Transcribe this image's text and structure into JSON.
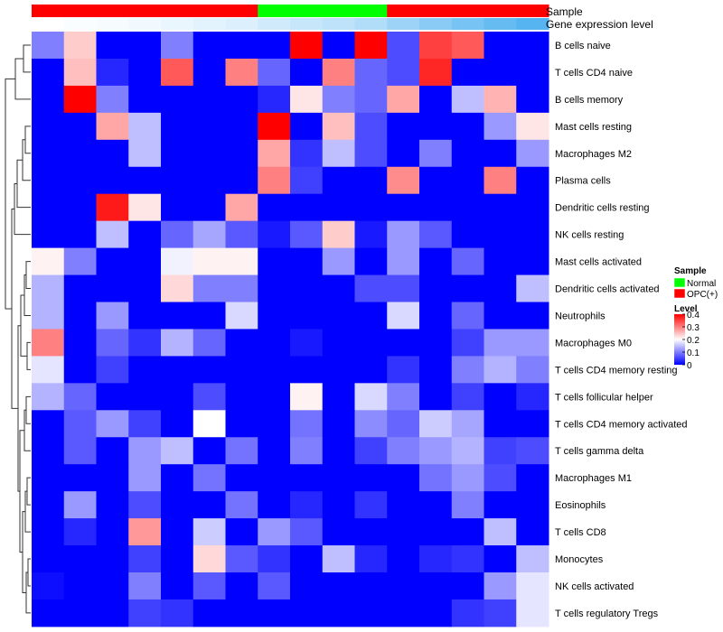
{
  "chart_data": {
    "type": "heatmap",
    "annotation_tracks": [
      "Sample",
      "Gene expression level"
    ],
    "rows": [
      "B cells naive",
      "T cells CD4 naive",
      "B cells memory",
      "Mast cells resting",
      "Macrophages M2",
      "Plasma cells",
      "Dendritic cells resting",
      "NK cells resting",
      "Mast cells activated",
      "Dendritic cells activated",
      "Neutrophils",
      "Macrophages M0",
      "T cells CD4 memory resting",
      "T cells follicular helper",
      "T cells CD4 memory activated",
      "T cells gamma delta",
      "Macrophages M1",
      "Eosinophils",
      "T cells CD8",
      "Monocytes",
      "NK cells activated",
      "T cells regulatory  Tregs"
    ],
    "sample_groups": [
      "OPC(+)",
      "OPC(+)",
      "OPC(+)",
      "OPC(+)",
      "OPC(+)",
      "OPC(+)",
      "OPC(+)",
      "Normal",
      "Normal",
      "Normal",
      "Normal",
      "OPC(+)",
      "OPC(+)",
      "OPC(+)",
      "OPC(+)",
      "OPC(+)"
    ],
    "expression_level": [
      0.0,
      0.02,
      0.04,
      0.06,
      0.09,
      0.12,
      0.15,
      0.2,
      0.24,
      0.28,
      0.33,
      0.42,
      0.5,
      0.58,
      0.65,
      0.72
    ],
    "values": [
      [
        0.1,
        0.24,
        0,
        0,
        0.1,
        0,
        0,
        0,
        0.4,
        0,
        0.4,
        0.06,
        0.35,
        0.33,
        0,
        0
      ],
      [
        0,
        0.25,
        0.03,
        0,
        0.33,
        0,
        0.3,
        0.08,
        0,
        0.3,
        0.08,
        0.06,
        0.37,
        0,
        0,
        0
      ],
      [
        0,
        0.4,
        0.1,
        0,
        0,
        0,
        0,
        0.03,
        0.22,
        0.1,
        0.08,
        0.27,
        0,
        0.15,
        0.26,
        0
      ],
      [
        0,
        0,
        0.27,
        0.15,
        0,
        0,
        0,
        0.4,
        0,
        0.25,
        0.06,
        0,
        0,
        0,
        0.12,
        0.22
      ],
      [
        0,
        0,
        0,
        0.15,
        0,
        0,
        0,
        0.27,
        0.04,
        0.15,
        0.06,
        0,
        0.1,
        0,
        0,
        0.12
      ],
      [
        0,
        0,
        0,
        0,
        0,
        0,
        0,
        0.3,
        0.05,
        0,
        0,
        0.29,
        0,
        0,
        0.3,
        0
      ],
      [
        0,
        0,
        0.38,
        0.22,
        0,
        0,
        0.27,
        0,
        0,
        0,
        0,
        0,
        0,
        0,
        0,
        0
      ],
      [
        0,
        0,
        0.15,
        0,
        0.08,
        0.13,
        0.07,
        0.02,
        0.07,
        0.24,
        0.02,
        0.12,
        0.07,
        0,
        0,
        0
      ],
      [
        0.21,
        0.1,
        0,
        0,
        0.19,
        0.21,
        0.21,
        0,
        0,
        0.12,
        0,
        0.12,
        0,
        0.08,
        0,
        0
      ],
      [
        0.14,
        0,
        0,
        0,
        0.23,
        0.1,
        0.1,
        0,
        0,
        0,
        0.06,
        0.06,
        0,
        0,
        0,
        0.15
      ],
      [
        0.14,
        0,
        0.12,
        0,
        0,
        0,
        0.17,
        0,
        0,
        0,
        0,
        0.17,
        0,
        0.08,
        0,
        0
      ],
      [
        0.3,
        0,
        0.08,
        0.04,
        0.14,
        0.08,
        0,
        0,
        0.02,
        0,
        0,
        0,
        0,
        0.05,
        0.12,
        0.12
      ],
      [
        0.18,
        0,
        0.05,
        0,
        0,
        0,
        0,
        0,
        0,
        0,
        0,
        0.04,
        0,
        0.1,
        0.14,
        0.1
      ],
      [
        0.14,
        0.08,
        0,
        0,
        0,
        0.06,
        0,
        0,
        0.21,
        0,
        0.17,
        0.1,
        0,
        0.05,
        0,
        0.03
      ],
      [
        0,
        0.07,
        0.12,
        0.05,
        0,
        0.2,
        0,
        0,
        0.09,
        0,
        0.11,
        0.08,
        0.16,
        0.13,
        0,
        0
      ],
      [
        0,
        0.07,
        0,
        0.12,
        0.15,
        0,
        0.09,
        0,
        0.1,
        0,
        0.05,
        0.1,
        0.12,
        0.14,
        0.05,
        0.06
      ],
      [
        0,
        0,
        0,
        0.12,
        0,
        0.09,
        0,
        0,
        0,
        0,
        0,
        0,
        0.09,
        0.12,
        0.06,
        0
      ],
      [
        0,
        0.12,
        0,
        0.06,
        0,
        0,
        0.09,
        0,
        0.03,
        0,
        0.04,
        0,
        0,
        0.1,
        0,
        0
      ],
      [
        0,
        0.03,
        0,
        0.28,
        0,
        0.16,
        0,
        0.12,
        0.07,
        0,
        0,
        0,
        0,
        0,
        0.15,
        0
      ],
      [
        0,
        0,
        0,
        0.05,
        0,
        0.23,
        0.07,
        0.04,
        0,
        0.15,
        0.03,
        0,
        0.03,
        0.04,
        0,
        0.15
      ],
      [
        0.01,
        0,
        0,
        0.1,
        0,
        0.07,
        0,
        0.07,
        0,
        0,
        0,
        0,
        0,
        0,
        0.12,
        0.18
      ],
      [
        0,
        0,
        0,
        0.05,
        0.04,
        0,
        0,
        0,
        0,
        0,
        0,
        0,
        0,
        0.04,
        0.05,
        0.18
      ]
    ],
    "legend_placement": "right",
    "legends": {
      "sample": {
        "title": "Sample",
        "entries": [
          {
            "label": "Normal",
            "color": "#00ff00"
          },
          {
            "label": "OPC(+)",
            "color": "#ff0000"
          }
        ]
      },
      "level": {
        "title": "Level",
        "ticks": [
          0.4,
          0.3,
          0.2,
          0.1,
          0
        ],
        "tick_labels": [
          "0.4",
          "0.3",
          "0.2",
          "0.1",
          "0"
        ],
        "range": [
          0,
          0.4
        ]
      }
    },
    "color_scale": [
      "#0000ff",
      "#ffffff",
      "#ff0000"
    ],
    "column_dendrogram": false,
    "row_dendrogram": true
  }
}
